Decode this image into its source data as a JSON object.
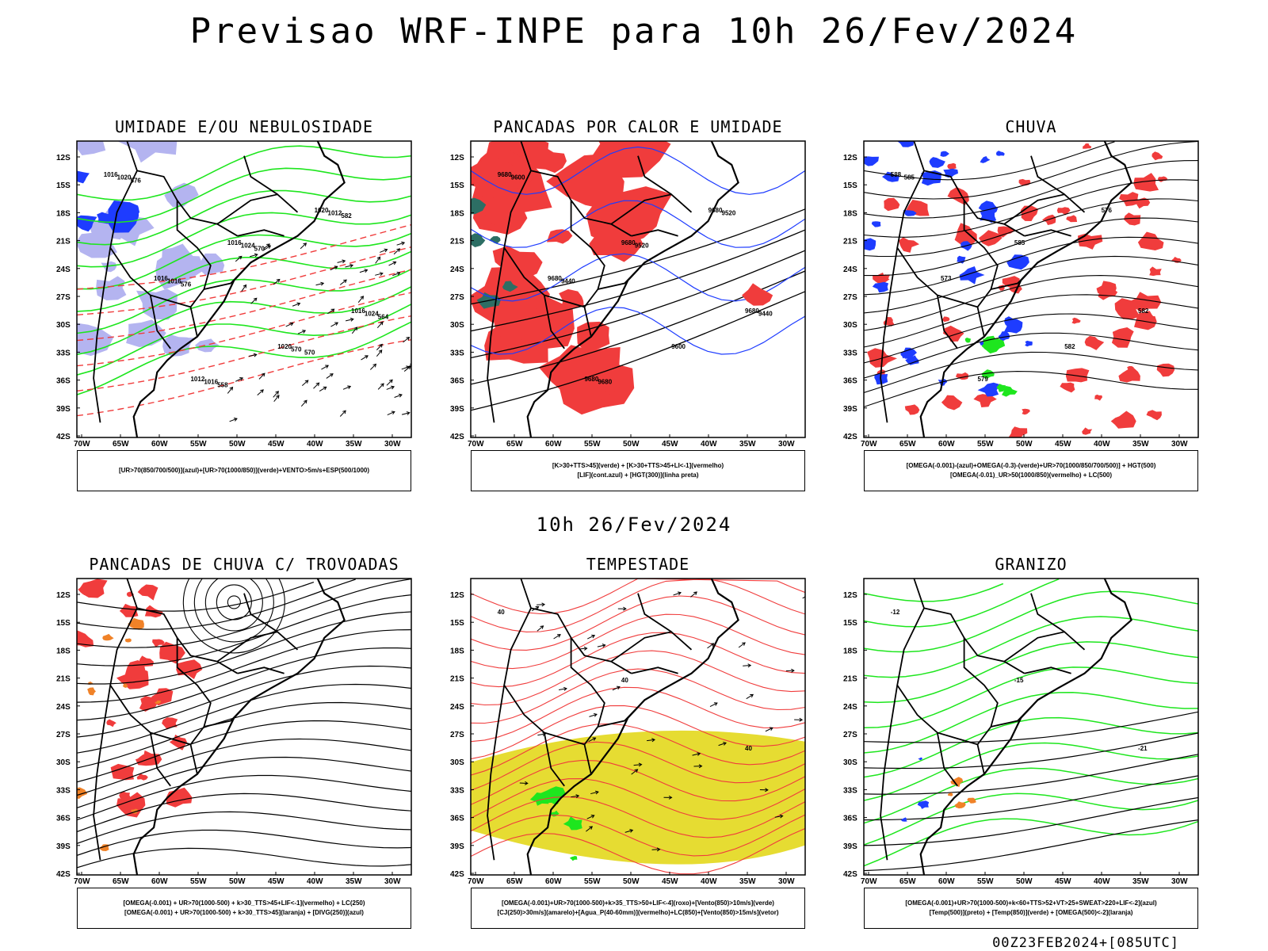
{
  "page": {
    "main_title": "Previsao WRF-INPE  para 10h 26/Fev/2024",
    "mid_title": "10h 26/Fev/2024",
    "footer_stamp": "00Z23FEB2024+[085UTC]"
  },
  "axes": {
    "lat_labels": [
      "12S",
      "15S",
      "18S",
      "21S",
      "24S",
      "27S",
      "30S",
      "33S",
      "36S",
      "39S",
      "42S"
    ],
    "lon_labels": [
      "70W",
      "65W",
      "60W",
      "55W",
      "50W",
      "45W",
      "40W",
      "35W",
      "30W"
    ]
  },
  "panels": [
    {
      "id": "umidade",
      "title": "UMIDADE E/OU NEBULOSIDADE",
      "legend": [
        "[UR>70(850/700/500)](azul)+[UR>70(1000/850)](verde)+VENTO>5m/s+ESP(500/1000)"
      ],
      "contour_labels": [
        "1016",
        "1016",
        "1016",
        "1012",
        "1020",
        "1016",
        "1020",
        "1020",
        "1024",
        "1024",
        "1016",
        "1012",
        "1016",
        "570",
        "576",
        "570",
        "564",
        "558",
        "582",
        "576",
        "570"
      ]
    },
    {
      "id": "pancadas-calor",
      "title": "PANCADAS POR CALOR E UMIDADE",
      "legend": [
        "[K>30+TTS>45](verde) + [K>30+TTS>45+LI<-1](vermelho)",
        "[LIF](cont.azul) + [HGT(300)](linha preta)"
      ],
      "contour_labels": [
        "9680",
        "9680",
        "9680",
        "9680",
        "9680",
        "9680",
        "9600",
        "9600",
        "9520",
        "9440",
        "9680",
        "9520",
        "9440"
      ]
    },
    {
      "id": "chuva",
      "title": "CHUVA",
      "legend": [
        "[OMEGA(-0.001)-(azul)+OMEGA(-0.3)-(verde)+UR>70(1000/850/700/500)] + HGT(500)",
        "[OMEGA(-0.01)_UR>50(1000/850)(vermelho) + LC(500)"
      ],
      "contour_labels": [
        "588",
        "585",
        "582",
        "579",
        "576",
        "573",
        "582",
        "585"
      ]
    },
    {
      "id": "pancadas-trovoadas",
      "title": "PANCADAS DE CHUVA C/ TROVOADAS",
      "legend": [
        "[OMEGA(-0.001) + UR>70(1000-500) + k>30_TTS>45+LIF<-1](vermelho) + LC(250)",
        "[OMEGA(-0.001) + UR>70(1000-500) + k>30_TTS>45](laranja) + [DIVG(250)](azul)"
      ],
      "contour_labels": []
    },
    {
      "id": "tempestade",
      "title": "TEMPESTADE",
      "legend": [
        "[OMEGA(-0.001)+UR>70(1000-500)+k>35_TTS>50+LIF<-4](roxo)+[Vento(850)>10m/s](verde)",
        "[CJ(250)>30m/s](amarelo)+[Agua_P(40-60mm)](vermelho)+LC(850)+[Vento(850)>15m/s](vetor)"
      ],
      "contour_labels": [
        "40",
        "40",
        "40"
      ]
    },
    {
      "id": "granizo",
      "title": "GRANIZO",
      "legend": [
        "[OMEGA(-0.001)+UR>70(1000-500)+k<60+TTS>52+VT>25+SWEAT>220+LIF<-2](azul)",
        "[Temp(500)](preto) + [Temp(850)](verde) + [OMEGA(500)<-2](laranja)"
      ],
      "contour_labels": [
        "-12",
        "-15",
        "-21"
      ]
    }
  ],
  "colors": {
    "red": "#f03c3c",
    "green": "#1ee61e",
    "blue": "#1e3cff",
    "lightblue": "#b4b4f0",
    "yellow": "#e6dc32",
    "orange": "#f08228",
    "teal": "#2d6e64",
    "purple": "#a01ec8"
  }
}
